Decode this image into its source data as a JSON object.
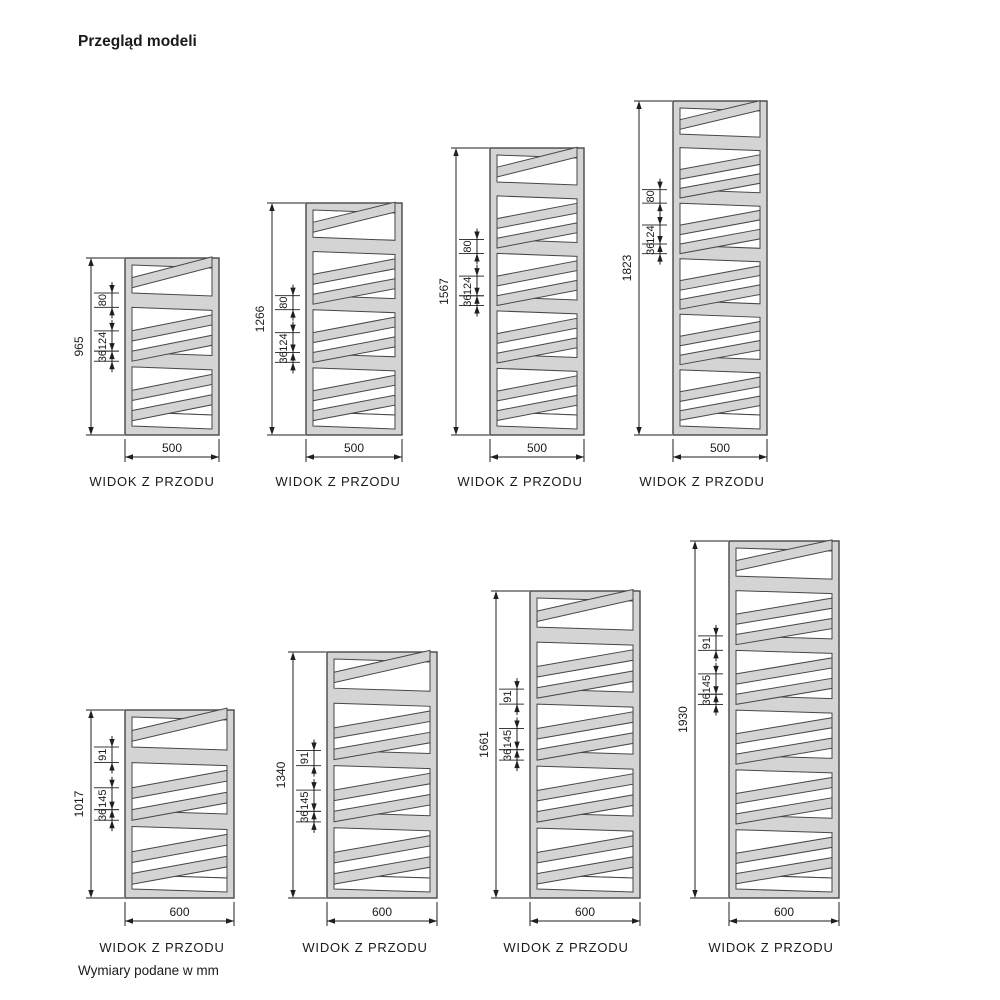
{
  "title": "Przegląd modeli",
  "units_note": "Wymiary podane w mm",
  "view_label": "WIDOK Z PRZODU",
  "colors": {
    "background": "#ffffff",
    "body_fill": "#d4d4d4",
    "body_outline": "#474747",
    "slot_fill": "#ffffff",
    "dim_line": "#1f1f1f",
    "tick_line": "#3a3a3a",
    "text": "#1a1a1a"
  },
  "radiators": [
    {
      "model_height_mm": "965",
      "model_width_mm": "500",
      "inner_dims_mm": [
        "80",
        "124",
        "36"
      ]
    },
    {
      "model_height_mm": "1266",
      "model_width_mm": "500",
      "inner_dims_mm": [
        "80",
        "124",
        "36"
      ]
    },
    {
      "model_height_mm": "1567",
      "model_width_mm": "500",
      "inner_dims_mm": [
        "80",
        "124",
        "36"
      ]
    },
    {
      "model_height_mm": "1823",
      "model_width_mm": "500",
      "inner_dims_mm": [
        "80",
        "124",
        "36"
      ]
    },
    {
      "model_height_mm": "1017",
      "model_width_mm": "600",
      "inner_dims_mm": [
        "91",
        "145",
        "36"
      ]
    },
    {
      "model_height_mm": "1340",
      "model_width_mm": "600",
      "inner_dims_mm": [
        "91",
        "145",
        "36"
      ]
    },
    {
      "model_height_mm": "1661",
      "model_width_mm": "600",
      "inner_dims_mm": [
        "91",
        "145",
        "36"
      ]
    },
    {
      "model_height_mm": "1930",
      "model_width_mm": "600",
      "inner_dims_mm": [
        "91",
        "145",
        "36"
      ]
    }
  ]
}
